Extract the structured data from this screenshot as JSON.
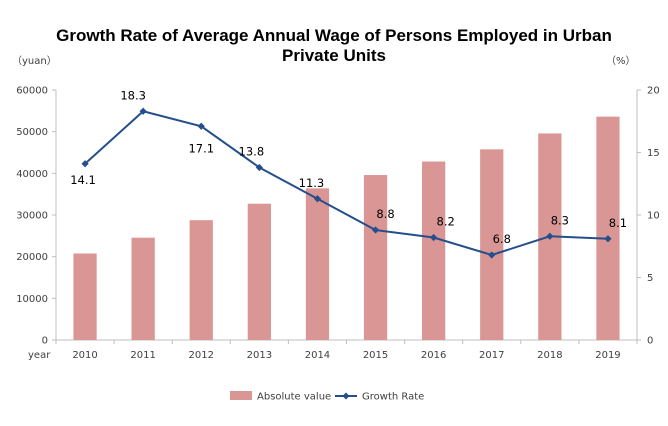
{
  "chart_data": {
    "type": "bar",
    "title_lines": [
      "Growth Rate of Average Annual Wage of Persons Employed in Urban",
      "Private Units"
    ],
    "x_axis_label": "year",
    "left_axis_unit": "（yuan）",
    "right_axis_unit": "（%）",
    "categories": [
      "2010",
      "2011",
      "2012",
      "2013",
      "2014",
      "2015",
      "2016",
      "2017",
      "2018",
      "2019"
    ],
    "y_left": {
      "ylim": [
        0,
        60000
      ],
      "ticks": [
        0,
        10000,
        20000,
        30000,
        40000,
        50000,
        60000
      ]
    },
    "y_right": {
      "ylim": [
        0,
        20
      ],
      "ticks": [
        0,
        5,
        10,
        15,
        20
      ]
    },
    "series": [
      {
        "name": "Absolute value",
        "type": "bar",
        "axis": "left",
        "color": "#d99694",
        "values": [
          20759,
          24556,
          28752,
          32706,
          36390,
          39589,
          42833,
          45761,
          49575,
          53604
        ]
      },
      {
        "name": "Growth Rate",
        "type": "line",
        "axis": "right",
        "color": "#254f8c",
        "values": [
          14.1,
          18.3,
          17.1,
          13.8,
          11.3,
          8.8,
          8.2,
          6.8,
          8.3,
          8.1
        ],
        "labels": [
          "14.1",
          "18.3",
          "17.1",
          "13.8",
          "11.3",
          "8.8",
          "8.2",
          "6.8",
          "8.3",
          "8.1"
        ]
      }
    ],
    "grid": false,
    "legend": "bottom"
  }
}
